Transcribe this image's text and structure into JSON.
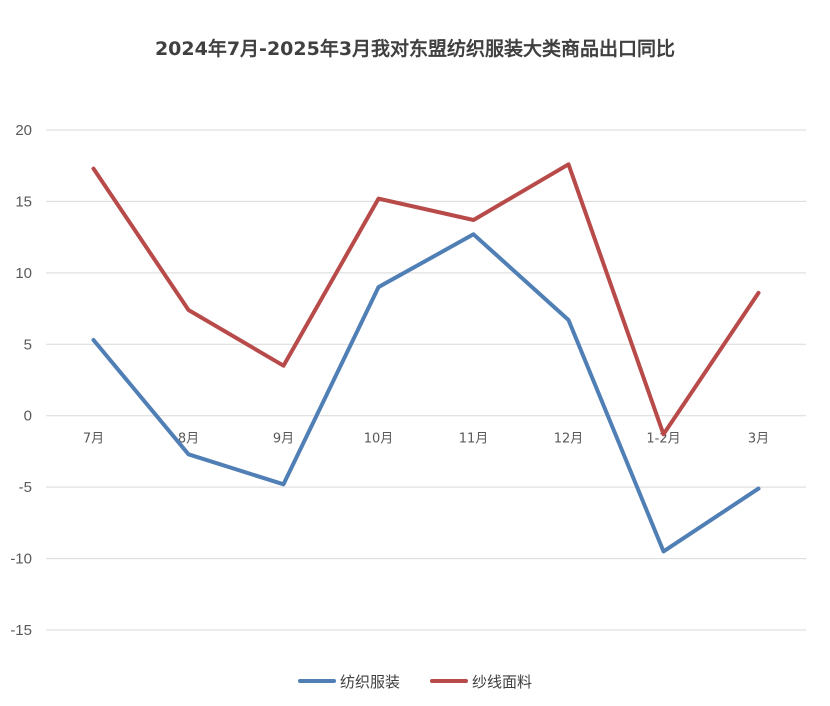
{
  "chart_data": {
    "type": "line",
    "title": "2024年7月-2025年3月我对东盟纺织服装大类商品出口同比",
    "xlabel": "",
    "ylabel": "",
    "categories": [
      "7月",
      "8月",
      "9月",
      "10月",
      "11月",
      "12月",
      "1-2月",
      "3月"
    ],
    "ylim": [
      -15,
      20
    ],
    "yticks": [
      20,
      15,
      10,
      5,
      0,
      -5,
      -10,
      -15
    ],
    "grid": true,
    "legend_position": "bottom",
    "series": [
      {
        "name": "纺织服装",
        "color": "#4f7fb5",
        "values": [
          5.3,
          -2.7,
          -4.8,
          9.0,
          12.7,
          6.7,
          -9.5,
          -5.1
        ]
      },
      {
        "name": "纱线面料",
        "color": "#b84a4a",
        "values": [
          17.3,
          7.4,
          3.5,
          15.2,
          13.7,
          17.6,
          -1.3,
          8.6
        ]
      }
    ]
  }
}
